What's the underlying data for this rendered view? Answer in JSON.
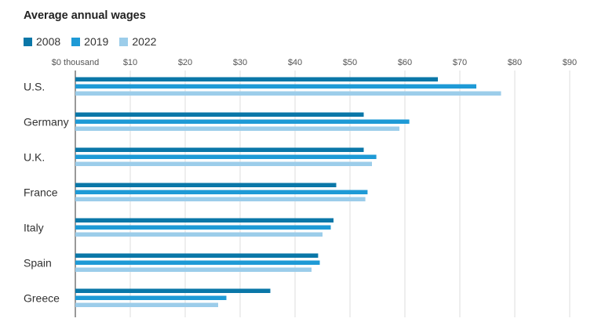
{
  "chart_data": {
    "type": "bar",
    "orientation": "horizontal",
    "title": "Average annual wages",
    "categories": [
      "U.S.",
      "Germany",
      "U.K.",
      "France",
      "Italy",
      "Spain",
      "Greece"
    ],
    "series": [
      {
        "name": "2008",
        "color": "#0a77a8",
        "values": [
          66.0,
          52.5,
          52.5,
          47.5,
          47.0,
          44.2,
          35.5
        ]
      },
      {
        "name": "2019",
        "color": "#1e9ad6",
        "values": [
          73.0,
          60.8,
          54.8,
          53.2,
          46.5,
          44.5,
          27.5
        ]
      },
      {
        "name": "2022",
        "color": "#9ccdea",
        "values": [
          77.5,
          59.0,
          54.0,
          52.8,
          45.0,
          43.0,
          26.0
        ]
      }
    ],
    "tick_labels": [
      "$0 thousand",
      "$10",
      "$20",
      "$30",
      "$40",
      "$50",
      "$60",
      "$70",
      "$80",
      "$90"
    ],
    "tick_values": [
      0,
      10,
      20,
      30,
      40,
      50,
      60,
      70,
      80,
      90
    ],
    "xlim": [
      0,
      90
    ],
    "grid": true,
    "legend_position": "top-left"
  }
}
